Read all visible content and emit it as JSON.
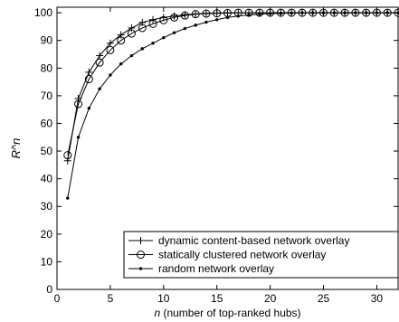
{
  "chart_data": {
    "type": "line",
    "xlabel_var": "n",
    "xlabel_rest": " (number of top-ranked hubs)",
    "ylabel": "R^n",
    "xlim": [
      0,
      32
    ],
    "ylim": [
      0,
      102
    ],
    "xticks": [
      0,
      5,
      10,
      15,
      20,
      25,
      30
    ],
    "yticks": [
      0,
      10,
      20,
      30,
      40,
      50,
      60,
      70,
      80,
      90,
      100
    ],
    "grid": false,
    "legend_position": "bottom-right",
    "x": [
      1,
      2,
      3,
      4,
      5,
      6,
      7,
      8,
      9,
      10,
      11,
      12,
      13,
      14,
      15,
      16,
      17,
      18,
      19,
      20,
      21,
      22,
      23,
      24,
      25,
      26,
      27,
      28,
      29,
      30,
      31,
      32
    ],
    "series": [
      {
        "name": "dynamic content-based network overlay",
        "marker": "plus",
        "color": "#000000",
        "values": [
          46.5,
          69,
          78.5,
          84.5,
          89,
          92,
          94.5,
          96.5,
          97.5,
          98.3,
          98.8,
          99.3,
          99.6,
          99.8,
          99.9,
          100,
          100,
          100,
          100,
          100,
          100,
          100,
          100,
          100,
          100,
          100,
          100,
          100,
          100,
          100,
          100,
          100
        ]
      },
      {
        "name": "statically clustered network overlay",
        "marker": "circle",
        "color": "#000000",
        "values": [
          48.5,
          67,
          76,
          82,
          86.5,
          90,
          92.5,
          94.5,
          96,
          97.3,
          98.3,
          99,
          99.5,
          99.7,
          99.8,
          99.9,
          100,
          100,
          100,
          100,
          100,
          100,
          100,
          100,
          100,
          100,
          100,
          100,
          100,
          100,
          100,
          100
        ]
      },
      {
        "name": "random network overlay",
        "marker": "dot",
        "color": "#000000",
        "values": [
          33,
          55,
          65.5,
          72.5,
          77.5,
          81.5,
          84.5,
          87,
          89,
          91,
          92.8,
          94.3,
          95.5,
          96.6,
          97.5,
          98.3,
          98.8,
          99.2,
          99.5,
          99.7,
          99.8,
          99.9,
          100,
          100,
          100,
          100,
          100,
          100,
          100,
          100,
          100,
          100
        ]
      }
    ]
  }
}
